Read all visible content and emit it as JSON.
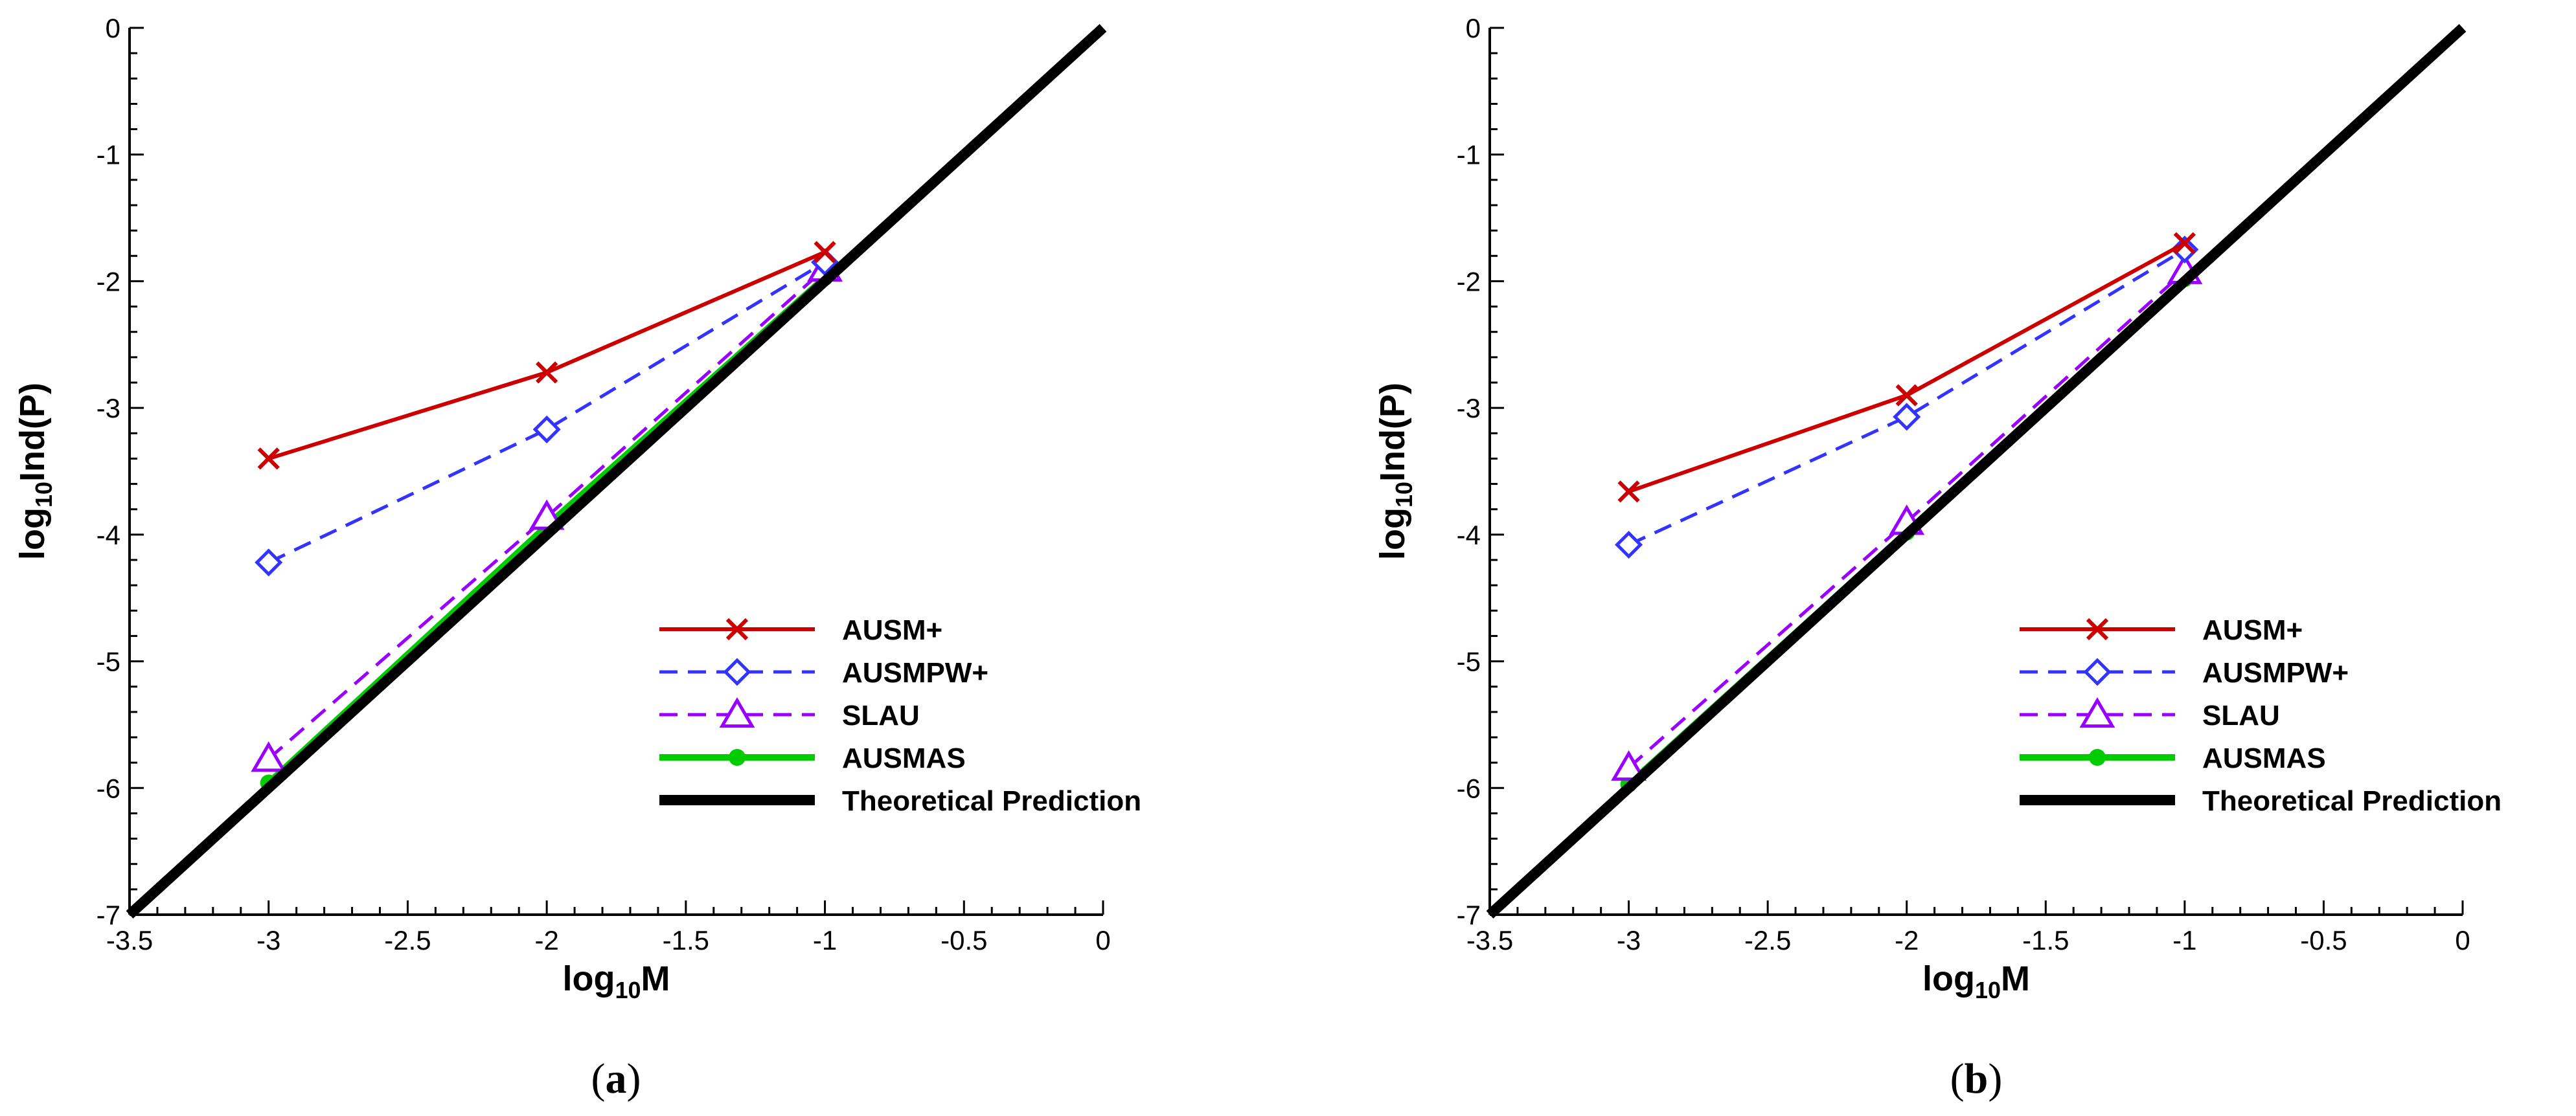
{
  "figure": {
    "colors": {
      "AUSM+": "#cc0000",
      "AUSMPW+": "#3333ff",
      "SLAU": "#9900ff",
      "AUSMAS": "#00cc00",
      "Theoretical Prediction": "#000000"
    }
  },
  "chart_data": [
    {
      "type": "line",
      "panel_label": "(a)",
      "panel_letter": "a",
      "xlabel": "log10M",
      "ylabel": "log10Ind(P)",
      "xlim": [
        -3.5,
        0
      ],
      "ylim": [
        -7,
        0
      ],
      "x_ticks": [
        -3.5,
        -3,
        -2.5,
        -2,
        -1.5,
        -1,
        -0.5,
        0
      ],
      "x_tick_labels": [
        "-3.5",
        "-3",
        "-2.5",
        "-2",
        "-1.5",
        "-1",
        "-0.5",
        "0"
      ],
      "y_ticks": [
        0,
        -1,
        -2,
        -3,
        -4,
        -5,
        -6,
        -7
      ],
      "y_tick_labels": [
        "0",
        "-1",
        "-2",
        "-3",
        "-4",
        "-5",
        "-6",
        "-7"
      ],
      "legend_position": "lower-right",
      "series": [
        {
          "name": "AUSM+",
          "marker": "x",
          "dash": "solid",
          "x": [
            -3,
            -2,
            -1
          ],
          "y": [
            -3.4,
            -2.72,
            -1.77
          ]
        },
        {
          "name": "AUSMPW+",
          "marker": "diamond",
          "dash": "dashed",
          "x": [
            -3,
            -2,
            -1
          ],
          "y": [
            -4.22,
            -3.17,
            -1.85
          ]
        },
        {
          "name": "SLAU",
          "marker": "triangle",
          "dash": "dashed",
          "x": [
            -3,
            -2,
            -1
          ],
          "y": [
            -5.77,
            -3.86,
            -1.9
          ]
        },
        {
          "name": "AUSMAS",
          "marker": "circle",
          "dash": "solid",
          "x": [
            -3,
            -2,
            -1
          ],
          "y": [
            -5.96,
            -3.93,
            -1.97
          ]
        },
        {
          "name": "Theoretical Prediction",
          "marker": "none",
          "dash": "solid-thick",
          "x": [
            -3.5,
            0
          ],
          "y": [
            -7,
            0
          ]
        }
      ]
    },
    {
      "type": "line",
      "panel_label": "(b)",
      "panel_letter": "b",
      "xlabel": "log10M",
      "ylabel": "log10Ind(P)",
      "xlim": [
        -3.5,
        0
      ],
      "ylim": [
        -7,
        0
      ],
      "x_ticks": [
        -3.5,
        -3,
        -2.5,
        -2,
        -1.5,
        -1,
        -0.5,
        0
      ],
      "x_tick_labels": [
        "-3.5",
        "-3",
        "-2.5",
        "-2",
        "-1.5",
        "-1",
        "-0.5",
        "0"
      ],
      "y_ticks": [
        0,
        -1,
        -2,
        -3,
        -4,
        -5,
        -6,
        -7
      ],
      "y_tick_labels": [
        "0",
        "-1",
        "-2",
        "-3",
        "-4",
        "-5",
        "-6",
        "-7"
      ],
      "legend_position": "lower-right",
      "series": [
        {
          "name": "AUSM+",
          "marker": "x",
          "dash": "solid",
          "x": [
            -3,
            -2,
            -1
          ],
          "y": [
            -3.66,
            -2.9,
            -1.7
          ]
        },
        {
          "name": "AUSMPW+",
          "marker": "diamond",
          "dash": "dashed",
          "x": [
            -3,
            -2,
            -1
          ],
          "y": [
            -4.08,
            -3.07,
            -1.75
          ]
        },
        {
          "name": "SLAU",
          "marker": "triangle",
          "dash": "dashed",
          "x": [
            -3,
            -2,
            -1
          ],
          "y": [
            -5.84,
            -3.9,
            -1.92
          ]
        },
        {
          "name": "AUSMAS",
          "marker": "circle",
          "dash": "solid",
          "x": [
            -3,
            -2,
            -1
          ],
          "y": [
            -5.97,
            -3.98,
            -1.98
          ]
        },
        {
          "name": "Theoretical Prediction",
          "marker": "none",
          "dash": "solid-thick",
          "x": [
            -3.5,
            0
          ],
          "y": [
            -7,
            0
          ]
        }
      ]
    }
  ]
}
